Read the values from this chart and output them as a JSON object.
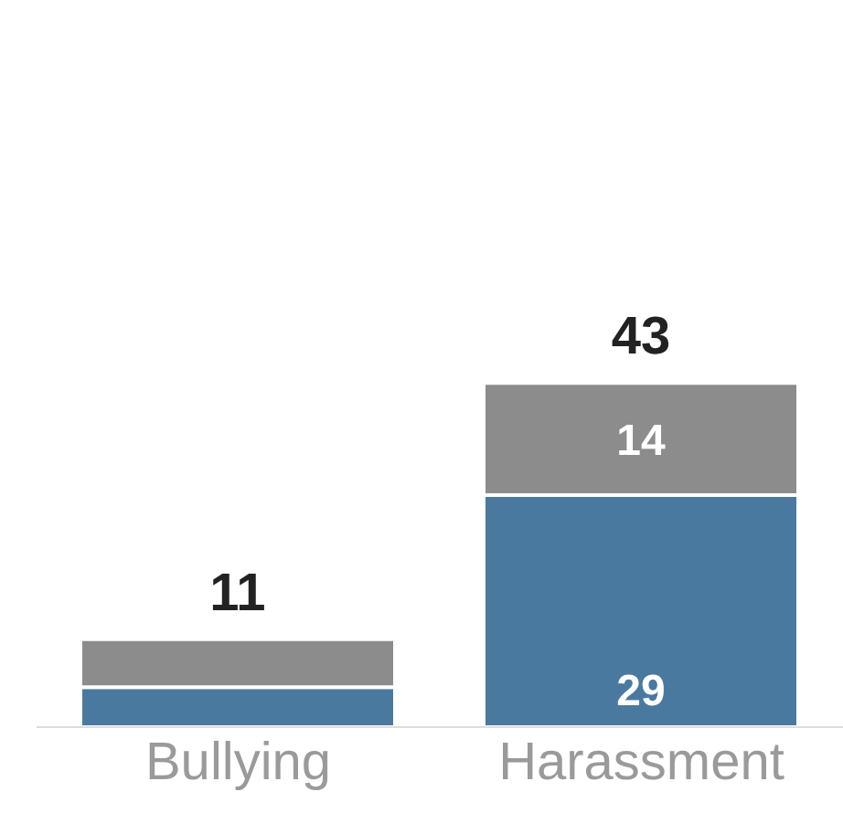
{
  "chart_data": {
    "type": "bar",
    "stacked": true,
    "categories": [
      "Bullying",
      "Harassment"
    ],
    "series": [
      {
        "color": "#4a79a0",
        "values": [
          5,
          29
        ],
        "value_labels": [
          null,
          "29"
        ]
      },
      {
        "color": "#8c8c8c",
        "values": [
          6,
          14
        ],
        "value_labels": [
          null,
          "14"
        ]
      }
    ],
    "totals": [
      "11",
      "43"
    ],
    "legend": false,
    "grid": false
  }
}
